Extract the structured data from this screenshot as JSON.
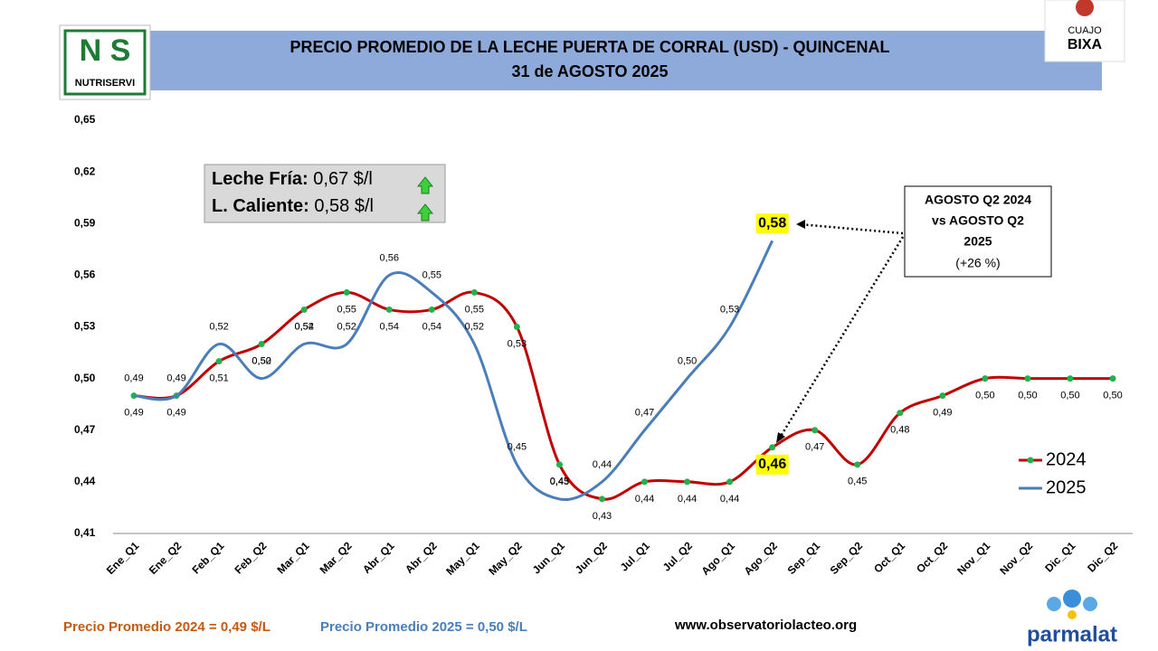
{
  "header": {
    "title": "PRECIO PROMEDIO DE LA LECHE PUERTA DE CORRAL (USD) - QUINCENAL",
    "subtitle": "31 de AGOSTO 2025"
  },
  "logos": {
    "left": "NUTRISERVI",
    "right_top": "CUAJO",
    "right_bottom": "BIXA",
    "bottom": "parmalat"
  },
  "info_box": {
    "row1_label": "Leche Fría:",
    "row1_value": "0,67 $/l",
    "row2_label": "L. Caliente:",
    "row2_value": "0,58 $/l"
  },
  "annotation": {
    "lines": [
      "AGOSTO Q2 2024",
      "vs AGOSTO Q2",
      "2025",
      "(+26 %)"
    ]
  },
  "footer": {
    "avg_2024": "Precio Promedio 2024 = 0,49 $/L",
    "avg_2025": "Precio Promedio 2025 = 0,50 $/L",
    "website": "www.observatoriolacteo.org"
  },
  "chart_data": {
    "type": "line",
    "categories": [
      "Ene_Q1",
      "Ene_Q2",
      "Feb_Q1",
      "Feb_Q2",
      "Mar_Q1",
      "Mar_Q2",
      "Abr_Q1",
      "Abr_Q2",
      "May_Q1",
      "May_Q2",
      "Jun_Q1",
      "Jun_Q2",
      "Jul_Q1",
      "Jul_Q2",
      "Ago_Q1",
      "Ago_Q2",
      "Sep_Q1",
      "Sep_Q2",
      "Oct_Q1",
      "Oct_Q2",
      "Nov_Q1",
      "Nov_Q2",
      "Dic_Q1",
      "Dic_Q2"
    ],
    "series": [
      {
        "name": "2024",
        "color": "#c00000",
        "marker_color": "#22b14c",
        "values": [
          0.49,
          0.49,
          0.51,
          0.52,
          0.54,
          0.55,
          0.54,
          0.54,
          0.55,
          0.53,
          0.45,
          0.43,
          0.44,
          0.44,
          0.44,
          0.46,
          0.47,
          0.45,
          0.48,
          0.49,
          0.5,
          0.5,
          0.5,
          0.5
        ],
        "value_labels": [
          "0,49",
          "0,49",
          "0,51",
          "0,52",
          "0,54",
          "0,55",
          "0,54",
          "0,54",
          "0,55",
          "0,53",
          "0,45",
          "0,43",
          "0,44",
          "0,44",
          "0,44",
          "0,46",
          "0,47",
          "0,45",
          "0,48",
          "0,49",
          "0,50",
          "0,50",
          "0,50",
          "0,50"
        ]
      },
      {
        "name": "2025",
        "color": "#4a7ebb",
        "values": [
          0.49,
          0.49,
          0.52,
          0.5,
          0.52,
          0.52,
          0.56,
          0.55,
          0.52,
          0.45,
          0.43,
          0.44,
          0.47,
          0.5,
          0.53,
          0.58,
          null,
          null,
          null,
          null,
          null,
          null,
          null,
          null
        ],
        "value_labels": [
          "0,49",
          "0,49",
          "0,52",
          "0,50",
          "0,52",
          "0,52",
          "0,56",
          "0,55",
          "0,52",
          "0,45",
          "0,43",
          "0,44",
          "0,47",
          "0,50",
          "0,53",
          "0,58",
          null,
          null,
          null,
          null,
          null,
          null,
          null,
          null
        ]
      }
    ],
    "highlight": "Ago_Q2",
    "ylim": [
      0.41,
      0.65
    ],
    "yticks": [
      {
        "value": 0.41,
        "label": "0,41"
      },
      {
        "value": 0.44,
        "label": "0,44"
      },
      {
        "value": 0.47,
        "label": "0,47"
      },
      {
        "value": 0.5,
        "label": "0,50"
      },
      {
        "value": 0.53,
        "label": "0,53"
      },
      {
        "value": 0.56,
        "label": "0,56"
      },
      {
        "value": 0.59,
        "label": "0,59"
      },
      {
        "value": 0.62,
        "label": "0,62"
      },
      {
        "value": 0.65,
        "label": "0,65"
      }
    ],
    "grid": false,
    "legend": "lower right"
  }
}
